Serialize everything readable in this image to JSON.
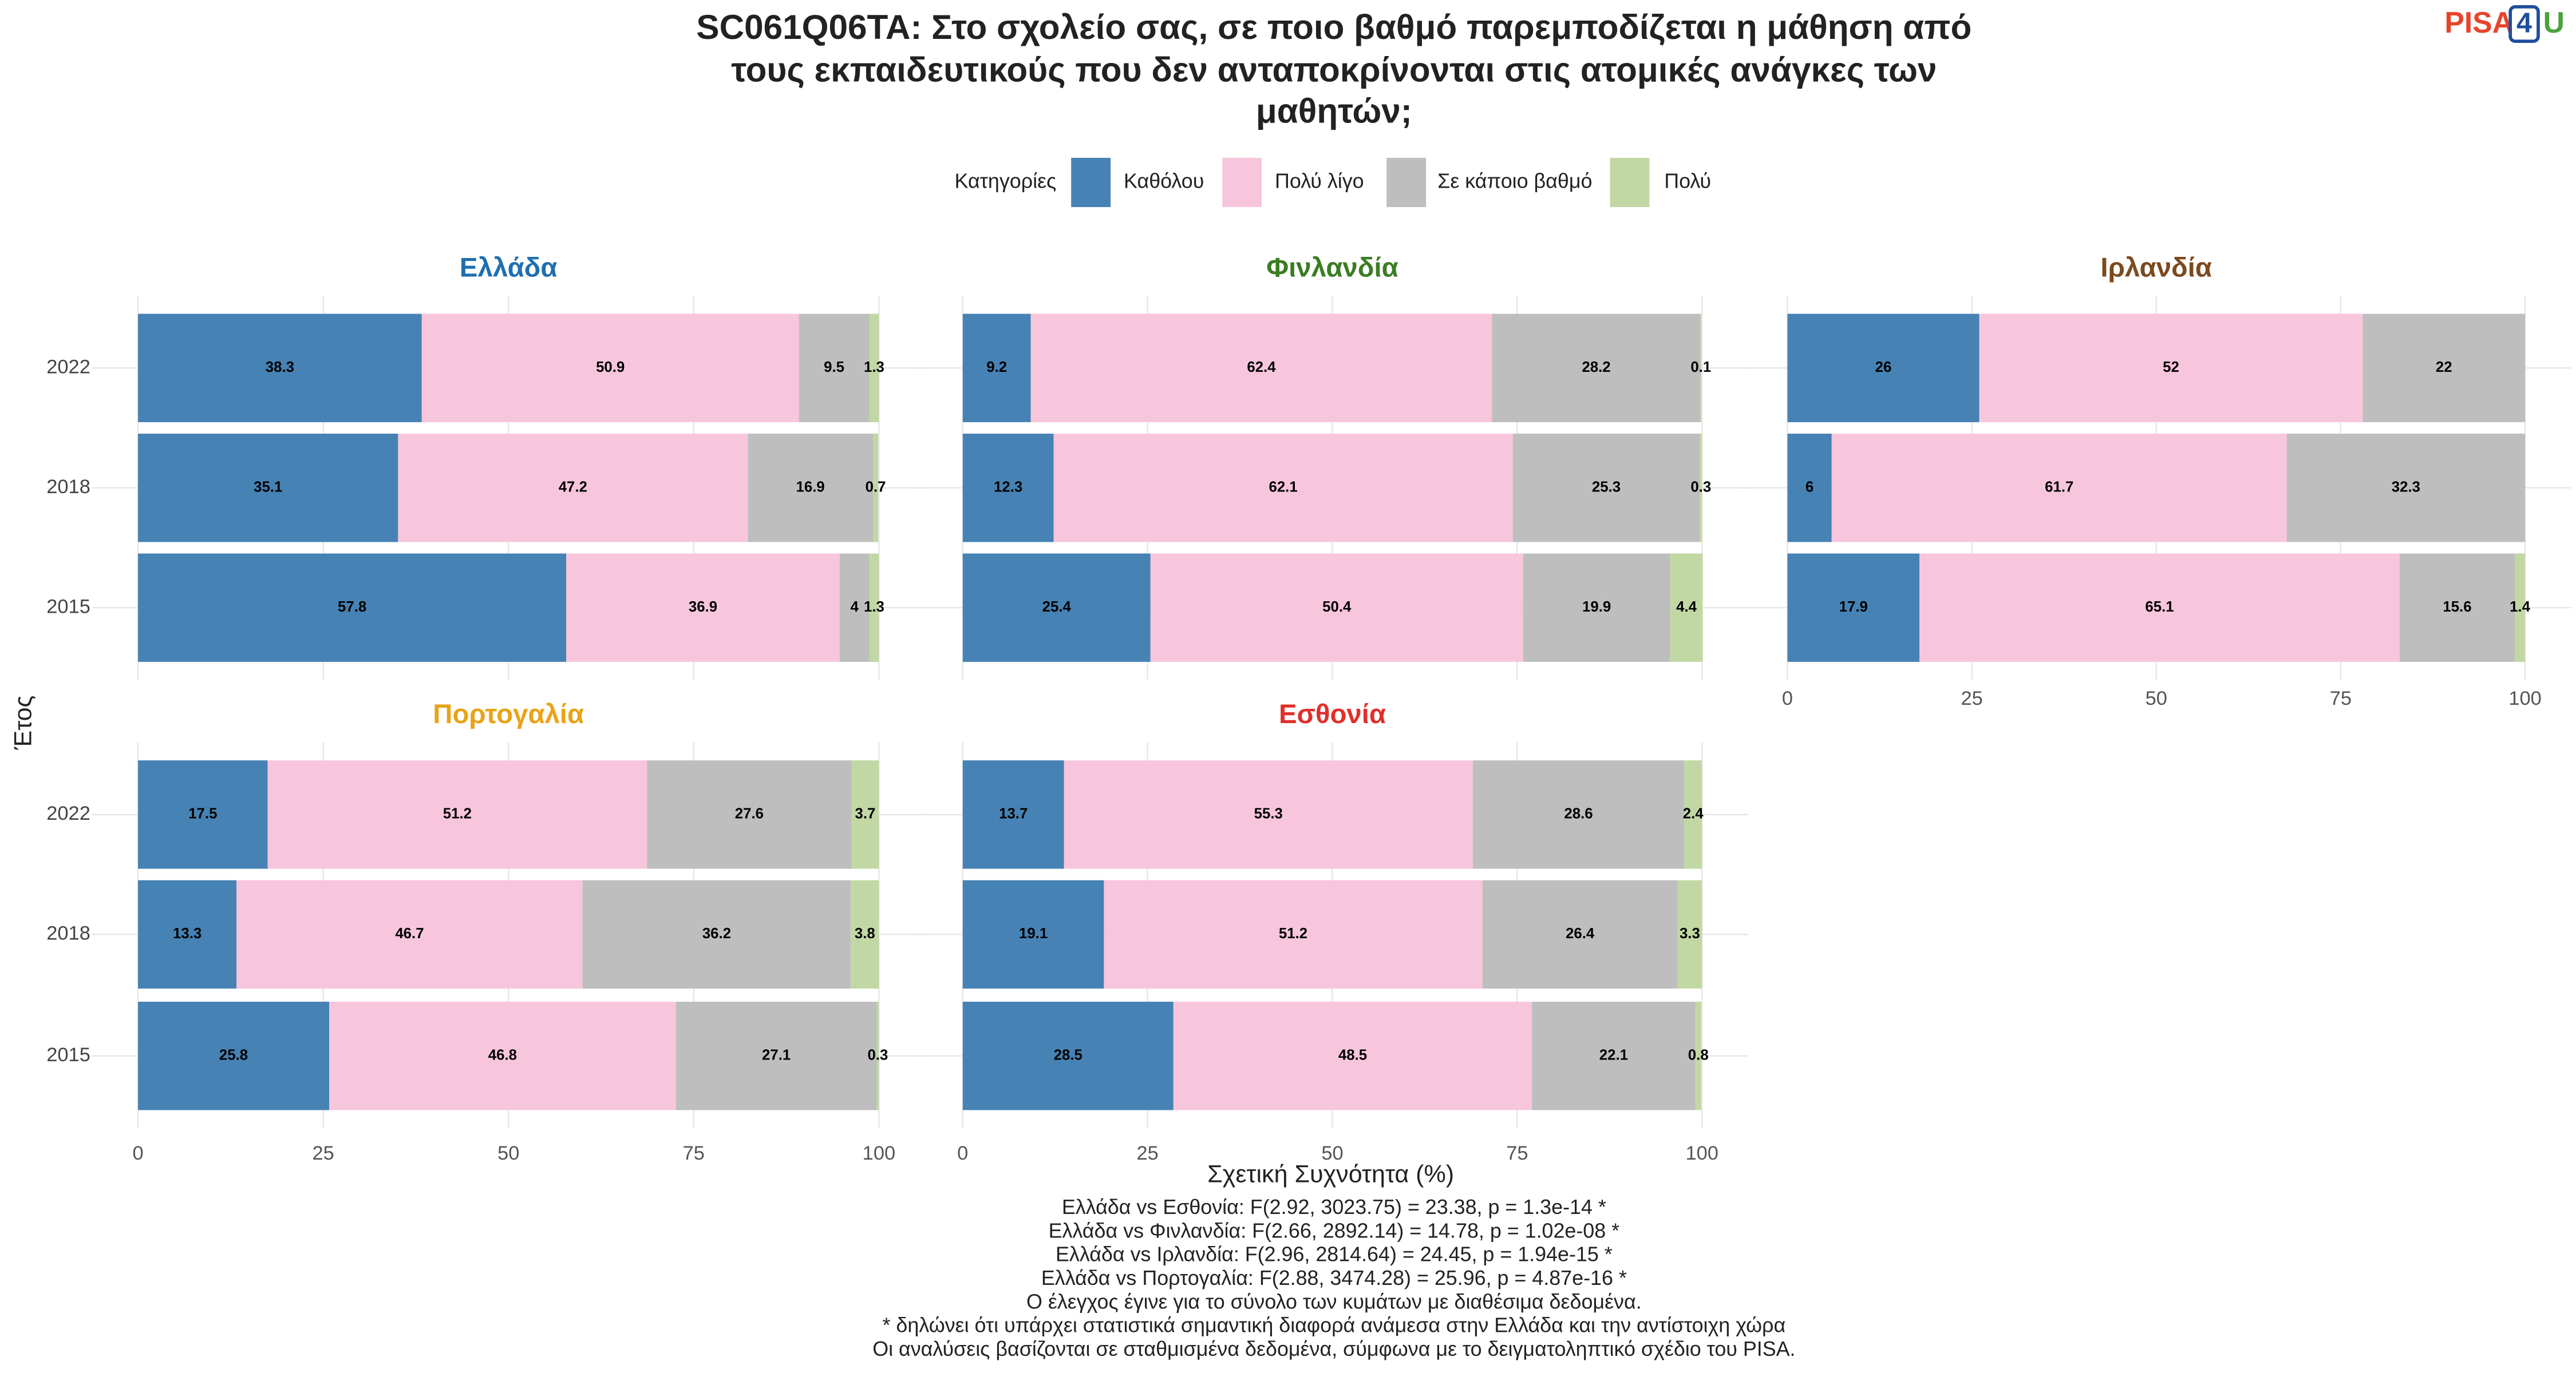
{
  "title": [
    "SC061Q06TA: Στο σχολείο σας, σε ποιο βαθμό παρεμποδίζεται η μάθηση από",
    "τους εκπαιδευτικούς που δεν ανταποκρίνονται στις ατομικές ανάγκες των",
    "μαθητών;"
  ],
  "logo": [
    "PISA",
    "4",
    "U"
  ],
  "legend": {
    "title": "Κατηγορίες",
    "series": [
      {
        "name": "Καθόλου",
        "color": "#4682b4"
      },
      {
        "name": "Πολύ λίγο",
        "color": "#f7c6dc"
      },
      {
        "name": "Σε κάποιο βαθμό",
        "color": "#bebebe"
      },
      {
        "name": "Πολύ",
        "color": "#c2d8a4"
      }
    ]
  },
  "categories": [
    "2022",
    "2018",
    "2015"
  ],
  "ylabel": "Έτος",
  "xlabel": "Σχετική Συχνότητα (%)",
  "chart_data": [
    {
      "type": "bar",
      "title": "Ελλάδα",
      "title_color": "#1f6fb0",
      "xlim": [
        0,
        100
      ],
      "xticks": [
        0,
        25,
        50,
        75,
        100
      ],
      "series": [
        {
          "values": [
            38.3,
            35.1,
            57.8
          ]
        },
        {
          "values": [
            50.9,
            47.2,
            36.9
          ]
        },
        {
          "values": [
            9.5,
            16.9,
            4
          ]
        },
        {
          "values": [
            1.3,
            0.7,
            1.3
          ]
        }
      ]
    },
    {
      "type": "bar",
      "title": "Φινλανδία",
      "title_color": "#3a7d22",
      "xlim": [
        0,
        100
      ],
      "xticks": [
        0,
        25,
        50,
        75,
        100
      ],
      "series": [
        {
          "values": [
            9.2,
            12.3,
            25.4
          ]
        },
        {
          "values": [
            62.4,
            62.1,
            50.4
          ]
        },
        {
          "values": [
            28.2,
            25.3,
            19.9
          ]
        },
        {
          "values": [
            0.1,
            0.3,
            4.4
          ]
        }
      ]
    },
    {
      "type": "bar",
      "title": "Ιρλανδία",
      "title_color": "#7b4a1e",
      "xlim": [
        0,
        100
      ],
      "xticks": [
        0,
        25,
        50,
        75,
        100
      ],
      "series": [
        {
          "values": [
            26,
            6,
            17.9
          ]
        },
        {
          "values": [
            52,
            61.7,
            65.1
          ]
        },
        {
          "values": [
            22,
            32.3,
            15.6
          ]
        },
        {
          "values": [
            null,
            null,
            1.4
          ]
        }
      ]
    },
    {
      "type": "bar",
      "title": "Πορτογαλία",
      "title_color": "#e8a317",
      "xlim": [
        0,
        100
      ],
      "xticks": [
        0,
        25,
        50,
        75,
        100
      ],
      "series": [
        {
          "values": [
            17.5,
            13.3,
            25.8
          ]
        },
        {
          "values": [
            51.2,
            46.7,
            46.8
          ]
        },
        {
          "values": [
            27.6,
            36.2,
            27.1
          ]
        },
        {
          "values": [
            3.7,
            3.8,
            0.3
          ]
        }
      ]
    },
    {
      "type": "bar",
      "title": "Εσθονία",
      "title_color": "#e0302a",
      "xlim": [
        0,
        100
      ],
      "xticks": [
        0,
        25,
        50,
        75,
        100
      ],
      "series": [
        {
          "values": [
            13.7,
            19.1,
            28.5
          ]
        },
        {
          "values": [
            55.3,
            51.2,
            48.5
          ]
        },
        {
          "values": [
            28.6,
            26.4,
            22.1
          ]
        },
        {
          "values": [
            2.4,
            3.3,
            0.8
          ]
        }
      ]
    }
  ],
  "notes": [
    "Ελλάδα vs Εσθονία: F(2.92, 3023.75) = 23.38, p = 1.3e-14 *",
    "Ελλάδα vs Φινλανδία: F(2.66, 2892.14) = 14.78, p = 1.02e-08 *",
    "Ελλάδα vs Ιρλανδία: F(2.96, 2814.64) = 24.45, p = 1.94e-15 *",
    "Ελλάδα vs Πορτογαλία: F(2.88, 3474.28) = 25.96, p = 4.87e-16 *",
    "Ο έλεγχος έγινε για το σύνολο των κυμάτων με διαθέσιμα δεδομένα.",
    "* δηλώνει ότι υπάρχει στατιστικά σημαντική διαφορά ανάμεσα στην Ελλάδα και την αντίστοιχη χώρα",
    "Οι αναλύσεις βασίζονται σε σταθμισμένα δεδομένα, σύμφωνα με το δειγματοληπτικό σχέδιο του PISA."
  ]
}
